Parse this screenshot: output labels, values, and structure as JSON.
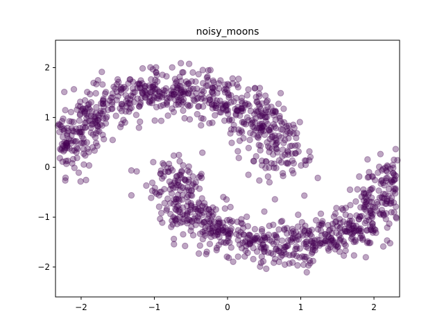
{
  "chart_data": {
    "type": "scatter",
    "title": "noisy_moons",
    "xlabel": "",
    "ylabel": "",
    "xlim": [
      -2.35,
      2.35
    ],
    "ylim": [
      -2.6,
      2.55
    ],
    "xticks": [
      -2,
      -1,
      0,
      1,
      2
    ],
    "yticks": [
      -2,
      -1,
      0,
      1,
      2
    ],
    "grid": false,
    "legend": "none",
    "series": [
      {
        "name": "noisy_moons",
        "color": "#440154",
        "alpha": 0.35,
        "n_points": 1500,
        "generator": "two interleaving half circles (radius 1.5, upper moon centered at (-0.75, 0.4), lower moon centered at (0.75, -0.4)) with gaussian noise sd 0.22"
      }
    ]
  }
}
